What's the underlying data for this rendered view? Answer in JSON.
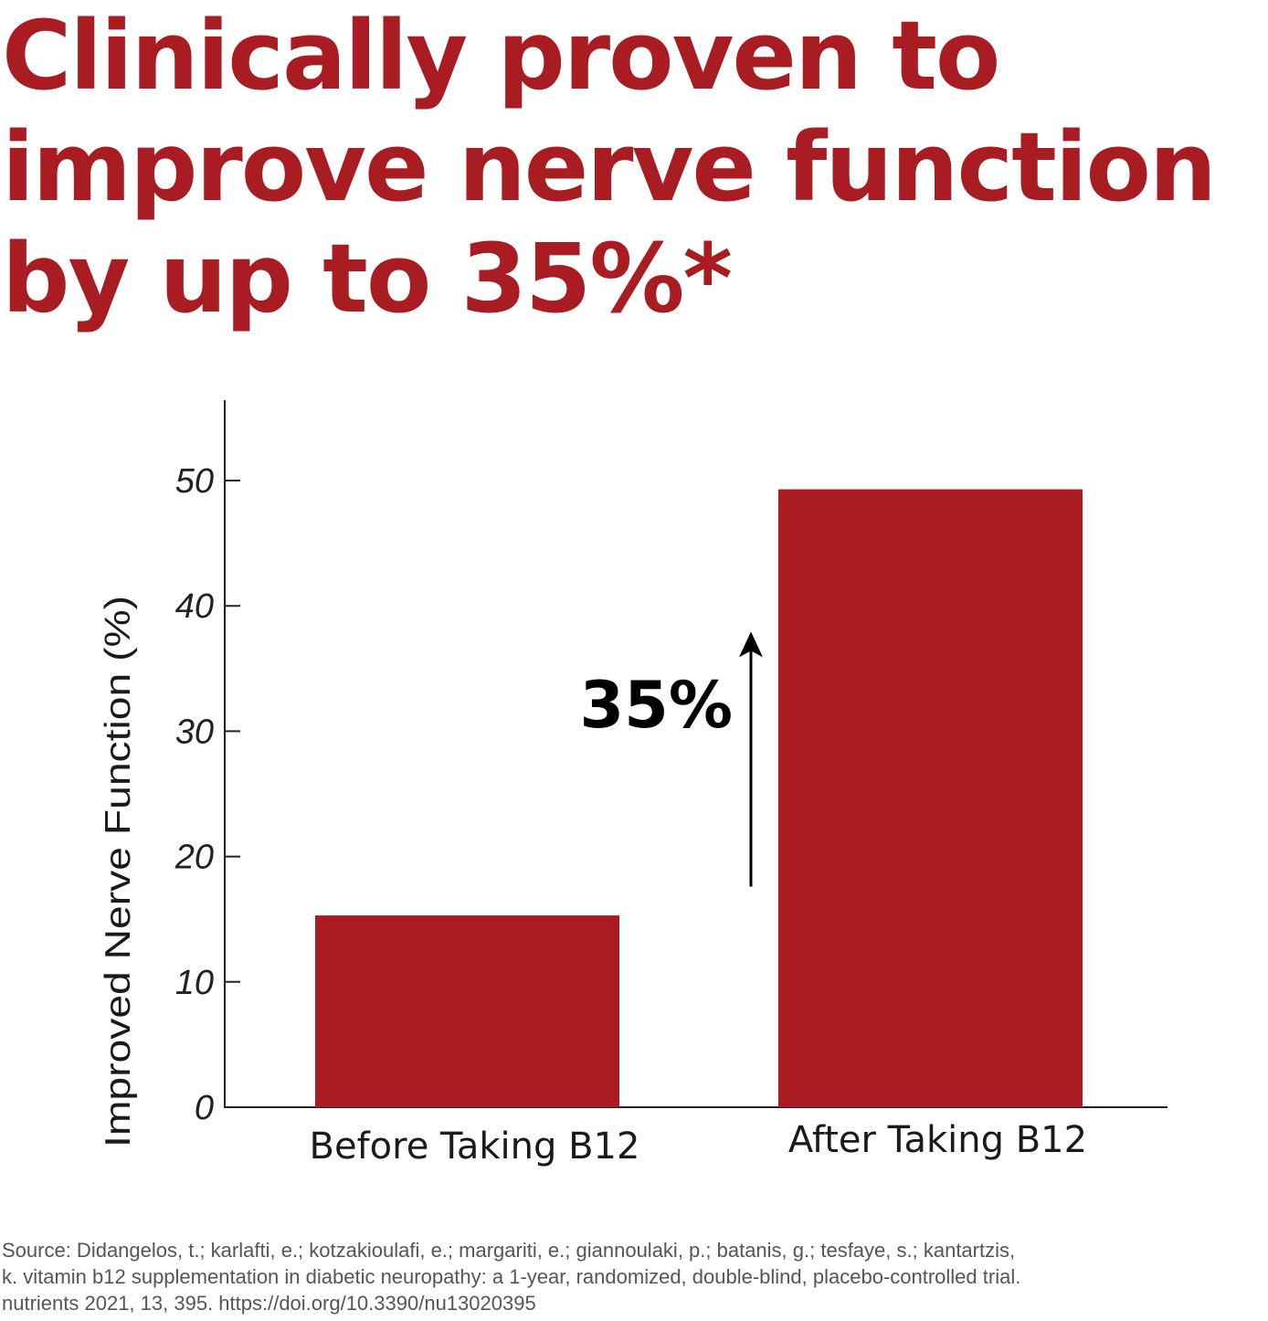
{
  "headline": {
    "lines": [
      "Clinically proven to",
      "improve nerve function",
      "by up to 35%*"
    ]
  },
  "colors": {
    "accent": "#a81c22",
    "bar": "#a81c22",
    "axis": "#222222",
    "text": "#1a1a1a"
  },
  "chart_data": {
    "type": "bar",
    "categories": [
      "Before Taking B12",
      "After Taking B12"
    ],
    "values": [
      15.3,
      49.3
    ],
    "xlabel": "",
    "ylabel": "Improved Nerve Function (%)",
    "ylim": [
      0,
      57
    ],
    "yticks": [
      0,
      10,
      20,
      30,
      40,
      50
    ],
    "grid": false,
    "legend": "none",
    "annotation": {
      "text": "35%",
      "arrow_from": 17.6,
      "arrow_to": 37.8
    }
  },
  "source": {
    "lines": [
      "Source: Didangelos, t.; karlafti, e.; kotzakioulafi, e.; margariti, e.; giannoulaki, p.; batanis, g.; tesfaye, s.; kantartzis,",
      "k. vitamin b12 supplementation in diabetic neuropathy: a 1-year, randomized, double-blind, placebo-controlled trial.",
      "nutrients 2021, 13, 395. https://doi.org/10.3390/nu13020395"
    ]
  }
}
